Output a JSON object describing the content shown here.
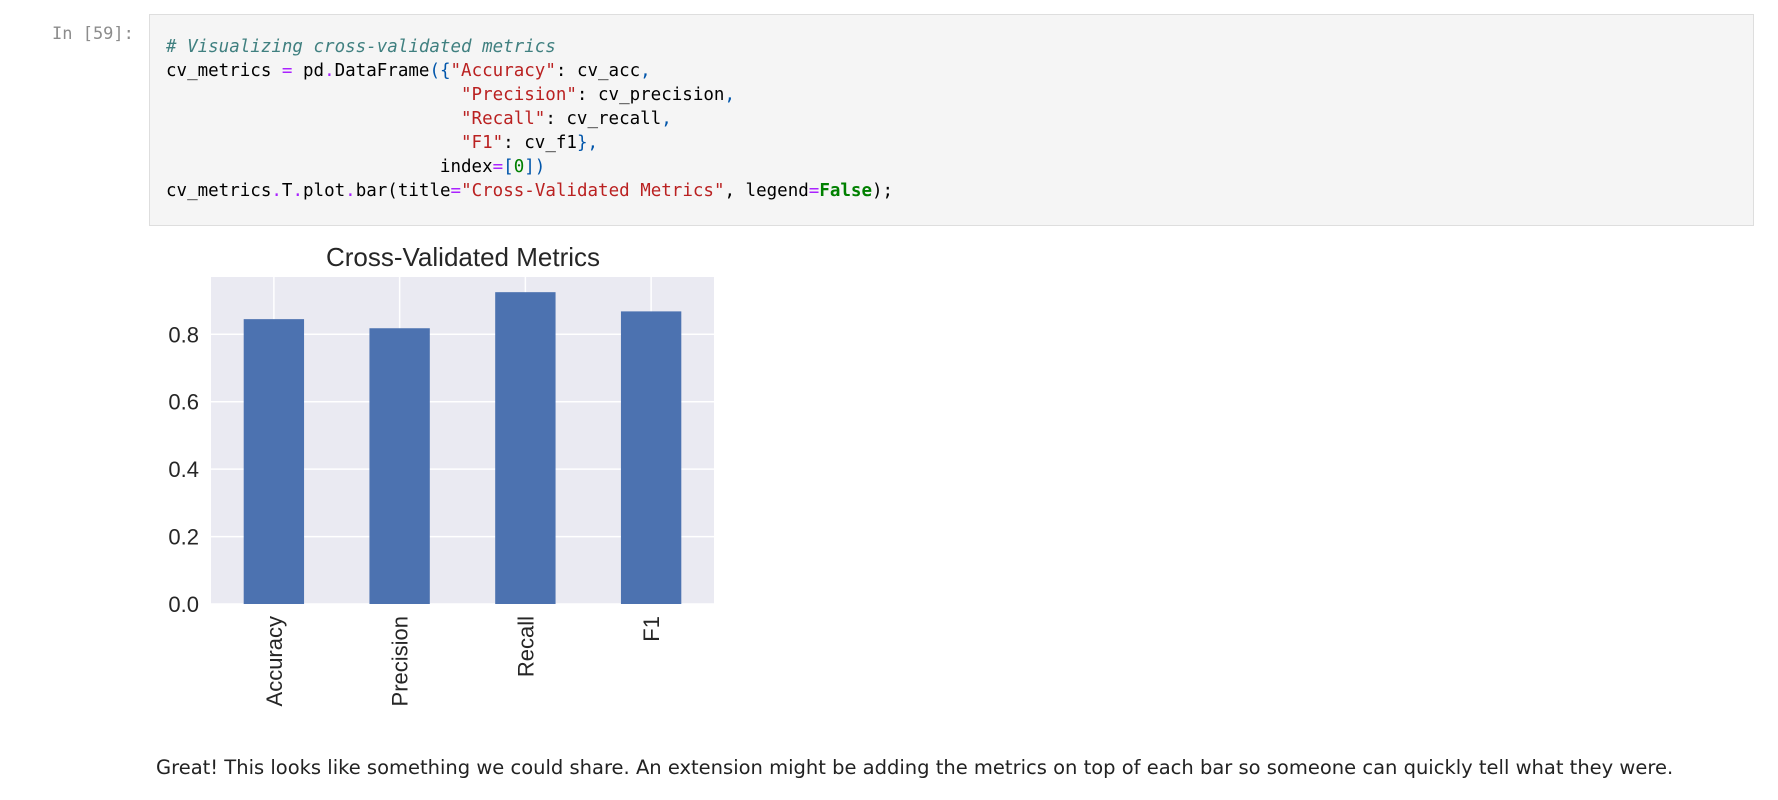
{
  "cell": {
    "prompt": "In [59]:",
    "code_lines": [
      [
        {
          "t": "# Visualizing cross-validated metrics",
          "c": "comment"
        }
      ],
      [
        {
          "t": "cv_metrics ",
          "c": "name"
        },
        {
          "t": "=",
          "c": "op"
        },
        {
          "t": " pd",
          "c": "name"
        },
        {
          "t": ".",
          "c": "op"
        },
        {
          "t": "DataFrame",
          "c": "name"
        },
        {
          "t": "({",
          "c": "paren"
        },
        {
          "t": "\"Accuracy\"",
          "c": "str"
        },
        {
          "t": ": cv_acc",
          "c": "name"
        },
        {
          "t": ",",
          "c": "paren"
        }
      ],
      [
        {
          "t": "                            ",
          "c": "name"
        },
        {
          "t": "\"Precision\"",
          "c": "str"
        },
        {
          "t": ": cv_precision",
          "c": "name"
        },
        {
          "t": ",",
          "c": "paren"
        }
      ],
      [
        {
          "t": "                            ",
          "c": "name"
        },
        {
          "t": "\"Recall\"",
          "c": "str"
        },
        {
          "t": ": cv_recall",
          "c": "name"
        },
        {
          "t": ",",
          "c": "paren"
        }
      ],
      [
        {
          "t": "                            ",
          "c": "name"
        },
        {
          "t": "\"F1\"",
          "c": "str"
        },
        {
          "t": ": cv_f1",
          "c": "name"
        },
        {
          "t": "},",
          "c": "paren"
        }
      ],
      [
        {
          "t": "                          index",
          "c": "name"
        },
        {
          "t": "=",
          "c": "op"
        },
        {
          "t": "[",
          "c": "paren"
        },
        {
          "t": "0",
          "c": "num"
        },
        {
          "t": "])",
          "c": "paren"
        }
      ],
      [
        {
          "t": "cv_metrics",
          "c": "name"
        },
        {
          "t": ".",
          "c": "op"
        },
        {
          "t": "T",
          "c": "name"
        },
        {
          "t": ".",
          "c": "op"
        },
        {
          "t": "plot",
          "c": "name"
        },
        {
          "t": ".",
          "c": "op"
        },
        {
          "t": "bar(title",
          "c": "name"
        },
        {
          "t": "=",
          "c": "op"
        },
        {
          "t": "\"Cross-Validated Metrics\"",
          "c": "str"
        },
        {
          "t": ", legend",
          "c": "name"
        },
        {
          "t": "=",
          "c": "op"
        },
        {
          "t": "False",
          "c": "kw"
        },
        {
          "t": ");",
          "c": "name"
        }
      ]
    ]
  },
  "chart_data": {
    "type": "bar",
    "title": "Cross-Validated Metrics",
    "categories": [
      "Accuracy",
      "Precision",
      "Recall",
      "F1"
    ],
    "values": [
      0.845,
      0.818,
      0.925,
      0.868
    ],
    "ylim": [
      0,
      0.97
    ],
    "yticks": [
      "0.0",
      "0.2",
      "0.4",
      "0.6",
      "0.8"
    ],
    "ytick_values": [
      0,
      0.2,
      0.4,
      0.6,
      0.8
    ],
    "legend": false,
    "grid": true,
    "colors": {
      "bar": "#4c72b0",
      "plot_bg": "#eaeaf2",
      "grid": "#ffffff"
    }
  },
  "markdown": {
    "text": "Great! This looks like something we could share. An extension might be adding the metrics on top of each bar so someone can quickly tell what they were."
  }
}
